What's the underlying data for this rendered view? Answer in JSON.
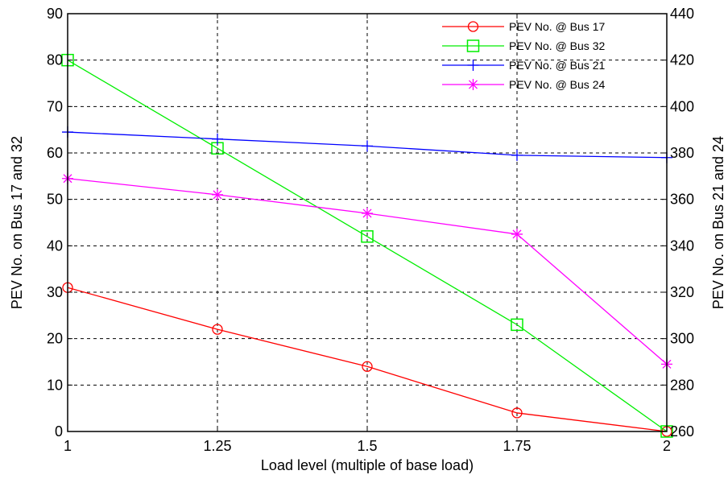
{
  "chart_data": {
    "type": "line",
    "xlabel": "Load level (multiple of base load)",
    "ylabel_left": "PEV No. on Bus 17 and 32",
    "ylabel_right": "PEV No. on Bus 21 and 24",
    "x": [
      1,
      1.25,
      1.5,
      1.75,
      2
    ],
    "x_tick_labels": [
      "1",
      "1.25",
      "1.5",
      "1.75",
      "2"
    ],
    "xlim": [
      1,
      2
    ],
    "ylim_left": [
      0,
      90
    ],
    "ylim_right": [
      260,
      440
    ],
    "y_ticks_left": [
      0,
      10,
      20,
      30,
      40,
      50,
      60,
      70,
      80,
      90
    ],
    "y_ticks_right": [
      260,
      280,
      300,
      320,
      340,
      360,
      380,
      400,
      420,
      440
    ],
    "grid": true,
    "legend_position": "top-right",
    "series": [
      {
        "name": "PEV No. @ Bus 17",
        "axis": "left",
        "color": "#ff0000",
        "marker": "circle",
        "values": [
          31,
          22,
          14,
          4,
          0
        ]
      },
      {
        "name": "PEV No. @ Bus 32",
        "axis": "left",
        "color": "#00ee00",
        "marker": "square",
        "values": [
          80,
          61,
          42,
          23,
          0
        ]
      },
      {
        "name": "PEV No. @ Bus 21",
        "axis": "right",
        "color": "#0000ff",
        "marker": "plus",
        "values": [
          389,
          386,
          383,
          379,
          378
        ]
      },
      {
        "name": "PEV No. @ Bus 24",
        "axis": "right",
        "color": "#ff00ff",
        "marker": "star",
        "values": [
          369,
          362,
          354,
          345,
          289
        ]
      }
    ]
  }
}
